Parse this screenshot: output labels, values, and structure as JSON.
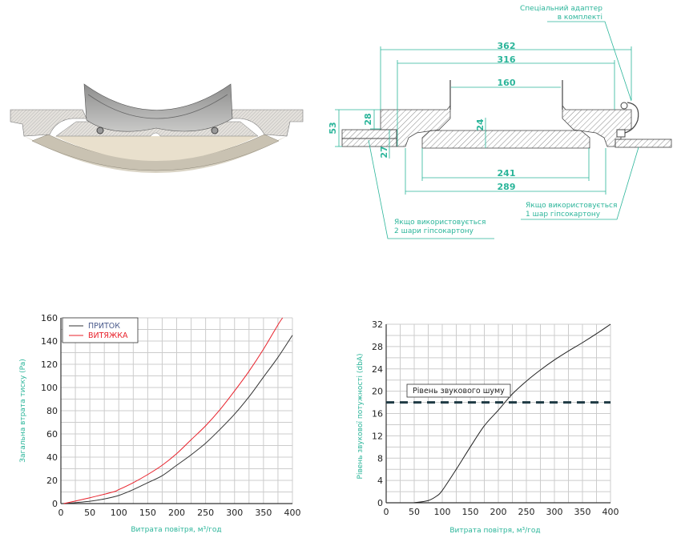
{
  "drawing": {
    "adapter_note": [
      "Спеціальний адаптер",
      "в комплекті"
    ],
    "note_two_layers": [
      "Якщо використовується",
      "2 шари гіпсокартону"
    ],
    "note_one_layer": [
      "Якщо використовується",
      "1 шар гіпсокартону"
    ],
    "dimensions": {
      "d362": "362",
      "d316": "316",
      "d160": "160",
      "d53": "53",
      "d28": "28",
      "d27": "27",
      "d24": "24",
      "d241": "241",
      "d289": "289"
    },
    "accent_color": "#2bb59a"
  },
  "chart_data": [
    {
      "type": "line",
      "xlabel": "Витрата повітря, м³/год",
      "ylabel": "Загальна втрата тиску (Pa)",
      "xlim": [
        0,
        400
      ],
      "ylim": [
        0,
        160
      ],
      "xticks": [
        0,
        50,
        100,
        150,
        200,
        250,
        300,
        350,
        400
      ],
      "yticks": [
        0,
        20,
        40,
        60,
        80,
        100,
        120,
        140,
        160
      ],
      "grid": true,
      "legend_position": "top-left",
      "series": [
        {
          "name": "ПРИТОК",
          "color": "#333333",
          "x": [
            5,
            50,
            75,
            100,
            125,
            150,
            175,
            200,
            225,
            250,
            275,
            300,
            325,
            350,
            375,
            400
          ],
          "y": [
            0,
            2,
            4,
            7,
            12,
            18,
            24,
            33,
            42,
            52,
            64,
            77,
            92,
            109,
            126,
            145
          ]
        },
        {
          "name": "ВИТЯЖКА",
          "color": "#e8212b",
          "x": [
            5,
            50,
            90,
            100,
            125,
            150,
            175,
            200,
            225,
            250,
            275,
            300,
            325,
            350,
            375,
            383
          ],
          "y": [
            0,
            5,
            10,
            12,
            18,
            25,
            33,
            43,
            55,
            67,
            81,
            97,
            114,
            133,
            154,
            160
          ]
        }
      ]
    },
    {
      "type": "line",
      "xlabel": "Витрата повітря, м³/год",
      "ylabel": "Рівень звукової потужності (dbA)",
      "xlim": [
        0,
        400
      ],
      "ylim": [
        0,
        32
      ],
      "xticks": [
        0,
        50,
        100,
        150,
        200,
        250,
        300,
        350,
        400
      ],
      "yticks": [
        0,
        4,
        8,
        12,
        16,
        20,
        24,
        28,
        32
      ],
      "grid": true,
      "series": [
        {
          "color": "#222222",
          "x": [
            50,
            75,
            90,
            100,
            125,
            150,
            175,
            200,
            225,
            250,
            275,
            300,
            325,
            350,
            375,
            400
          ],
          "y": [
            0,
            0.4,
            1.2,
            2.2,
            6,
            10,
            13.8,
            16.6,
            19.5,
            21.8,
            23.8,
            25.6,
            27.2,
            28.7,
            30.3,
            32
          ]
        }
      ],
      "reference_line": {
        "label": "Рівень звукового шуму",
        "y": 18,
        "style": "dashed",
        "color": "#1f3a44"
      }
    }
  ]
}
